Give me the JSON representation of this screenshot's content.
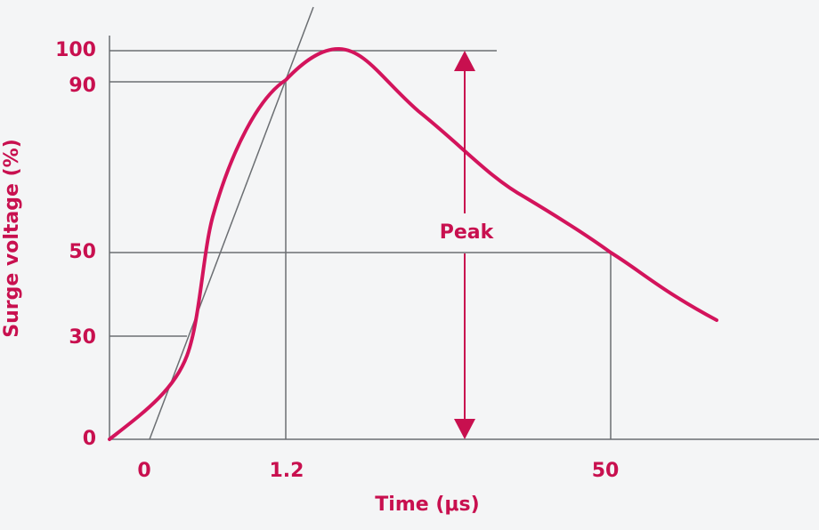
{
  "y_axis_label": "Surge voltage (%)",
  "x_axis_label": "Time (μs)",
  "y_tick_labels": [
    "100",
    "90",
    "50",
    "30",
    "0"
  ],
  "x_tick_labels": [
    "0",
    "1.2",
    "50"
  ],
  "annotation": "Peak"
}
